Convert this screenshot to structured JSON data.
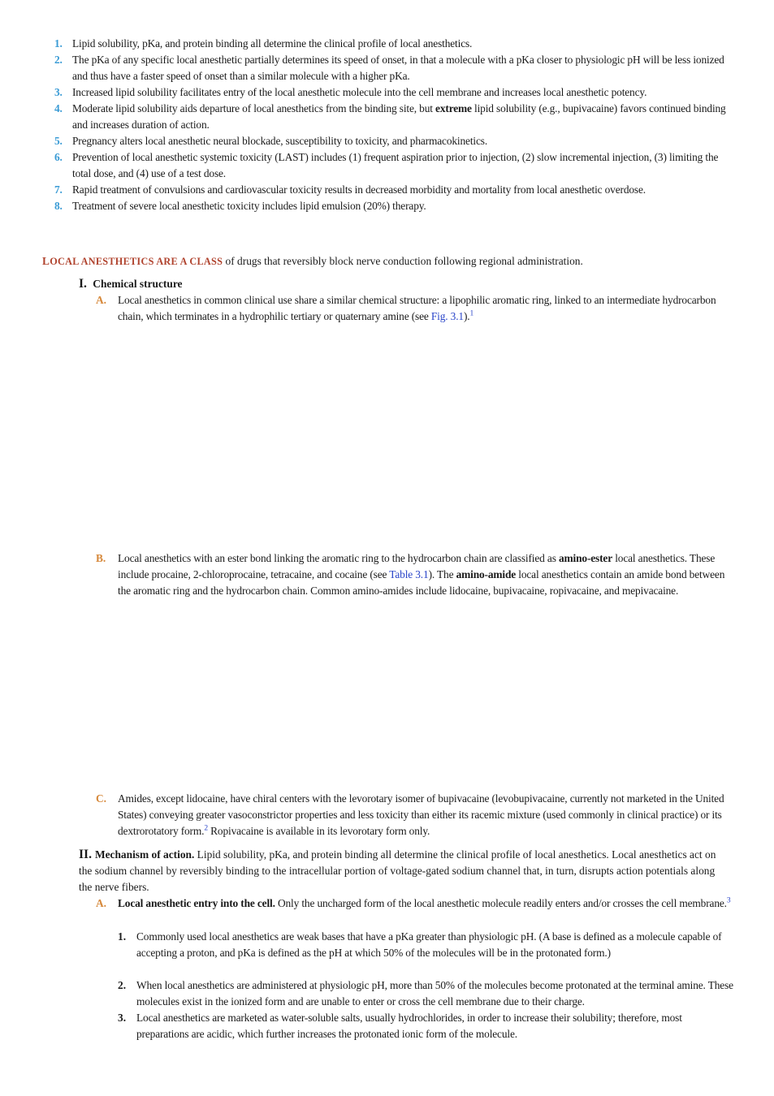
{
  "key_points": [
    {
      "num": "1.",
      "text": "Lipid solubility, pKa, and protein binding all determine the clinical profile of local anesthetics."
    },
    {
      "num": "2.",
      "text": "The pKa of any specific local anesthetic partially determines its speed of onset, in that a molecule with a pKa closer to physiologic pH will be less ionized and thus have a faster speed of onset than a similar molecule with a higher pKa."
    },
    {
      "num": "3.",
      "text": "Increased lipid solubility facilitates entry of the local anesthetic molecule into the cell membrane and increases local anesthetic potency."
    },
    {
      "num": "4.",
      "text_a": "Moderate lipid solubility aids departure of local anesthetics from the binding site, but ",
      "bold": "extreme",
      "text_b": " lipid solubility (e.g., bupivacaine) favors continued binding and increases duration of action."
    },
    {
      "num": "5.",
      "text": "Pregnancy alters local anesthetic neural blockade, susceptibility to toxicity, and pharmacokinetics."
    },
    {
      "num": "6.",
      "text": "Prevention of local anesthetic systemic toxicity (LAST) includes (1) frequent aspiration prior to injection, (2) slow incremental injection, (3) limiting the total dose, and (4) use of a test dose."
    },
    {
      "num": "7.",
      "text": "Rapid treatment of convulsions and cardiovascular toxicity results in decreased morbidity and mortality from local anesthetic overdose."
    },
    {
      "num": "8.",
      "text": "Treatment of severe local anesthetic toxicity includes lipid emulsion (20%) therapy."
    }
  ],
  "intro": {
    "lead_L": "L",
    "lead_ocal": "OCAL ANESTHETICS ARE A CLASS",
    "text": " of drugs that reversibly block nerve conduction following regional administration."
  },
  "section1": {
    "roman": "I.",
    "heading": "Chemical structure",
    "A": {
      "letter": "A.",
      "text": "Local anesthetics in common clinical use share a similar chemical structure: a lipophilic aromatic ring, linked to an intermediate hydrocarbon chain, which terminates in a hydrophilic tertiary or quaternary amine (see ",
      "link": "Fig. 3.1",
      "after": ").",
      "ref": "1"
    },
    "B": {
      "letter": "B.",
      "t1": "Local anesthetics with an ester bond linking the aromatic ring to the hydrocarbon chain are classified as ",
      "b1": "amino-ester",
      "t2": " local anesthetics. These include procaine, 2-chloroprocaine, tetracaine, and cocaine (see ",
      "link": "Table 3.1",
      "t3": "). The ",
      "b2": "amino-amide",
      "t4": " local anesthetics contain an amide bond between the aromatic ring and the hydrocarbon chain. Common amino-amides include lidocaine, bupivacaine, ropivacaine, and mepivacaine."
    },
    "C": {
      "letter": "C.",
      "t1": "Amides, except lidocaine, have chiral centers with the levorotary isomer of bupivacaine (levobupivacaine, currently not marketed in the United States) conveying greater vasoconstrictor properties and less toxicity than either its racemic mixture (used commonly in clinical practice) or its dextrorotatory form.",
      "ref": "2",
      "t2": " Ropivacaine is available in its levorotary form only."
    }
  },
  "section2": {
    "roman": "II.",
    "heading": "Mechanism of action.",
    "text": " Lipid solubility, pKa, and protein binding all determine the clinical profile of local anesthetics. Local anesthetics act on the sodium channel by reversibly binding to the intracellular portion of voltage-gated sodium channel that, in turn, disrupts action potentials along the nerve fibers.",
    "A": {
      "letter": "A.",
      "heading": "Local anesthetic entry into the cell.",
      "text": " Only the uncharged form of the local anesthetic molecule readily enters and/or crosses the cell membrane.",
      "ref": "3"
    },
    "items": [
      {
        "num": "1.",
        "text": "Commonly used local anesthetics are weak bases that have a pKa greater than physiologic pH. (A base is defined as a molecule capable of accepting a proton, and pKa is defined as the pH at which 50% of the molecules will be in the protonated form.)"
      },
      {
        "num": "2.",
        "text": "When local anesthetics are administered at physiologic pH, more than 50% of the molecules become protonated at the terminal amine. These molecules exist in the ionized form and are unable to enter or cross the cell membrane due to their charge."
      },
      {
        "num": "3.",
        "text": "Local anesthetics are marketed as water-soluble salts, usually hydrochlorides, in order to increase their solubility; therefore, most preparations are acidic, which further increases the protonated ionic form of the molecule."
      }
    ]
  }
}
